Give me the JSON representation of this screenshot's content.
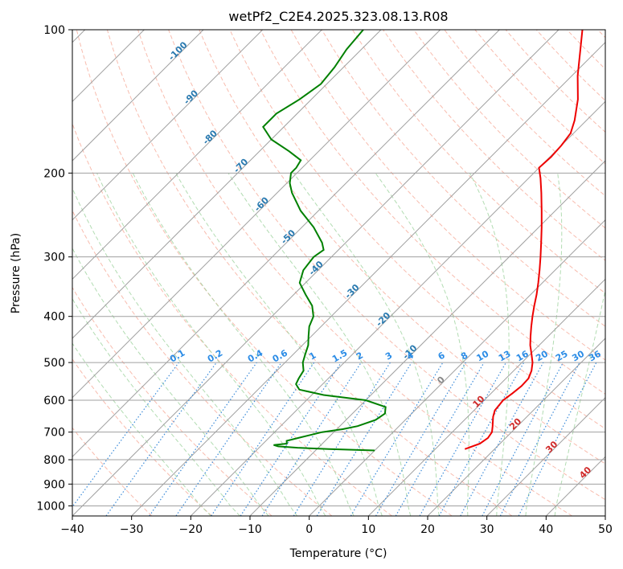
{
  "chart_data": {
    "type": "skew-t",
    "title": "wetPf2_C2E4.2025.323.08.13.R08",
    "xlabel": "Temperature (°C)",
    "ylabel": "Pressure (hPa)",
    "xlim": [
      -40,
      50
    ],
    "ylim_hpa": [
      1050,
      100
    ],
    "x_ticks": [
      -40,
      -30,
      -20,
      -10,
      0,
      10,
      20,
      30,
      40,
      50
    ],
    "x_tick_labels": [
      "−40",
      "−30",
      "−20",
      "−10",
      "0",
      "10",
      "20",
      "30",
      "40",
      "50"
    ],
    "p_ticks": [
      100,
      200,
      300,
      400,
      500,
      600,
      700,
      800,
      900,
      1000
    ],
    "p_tick_labels": [
      "100",
      "200",
      "300",
      "400",
      "500",
      "600",
      "700",
      "800",
      "900",
      "1000"
    ],
    "grid": true,
    "isotherm_labels": [
      {
        "text": "-100",
        "value": -100
      },
      {
        "text": "-90",
        "value": -90
      },
      {
        "text": "-80",
        "value": -80
      },
      {
        "text": "-70",
        "value": -70
      },
      {
        "text": "-60",
        "value": -60
      },
      {
        "text": "-50",
        "value": -50
      },
      {
        "text": "-40",
        "value": -40
      },
      {
        "text": "-30",
        "value": -30
      },
      {
        "text": "-20",
        "value": -20
      },
      {
        "text": "-10",
        "value": -10
      },
      {
        "text": "0",
        "value": 0
      },
      {
        "text": "10",
        "value": 10
      },
      {
        "text": "20",
        "value": 20
      },
      {
        "text": "30",
        "value": 30
      },
      {
        "text": "40",
        "value": 40
      }
    ],
    "mixing_ratio_labels": [
      "0.1",
      "0.2",
      "0.4",
      "0.6",
      "1",
      "1.5",
      "2",
      "3",
      "4",
      "6",
      "8",
      "10",
      "13",
      "16",
      "20",
      "25",
      "30",
      "36"
    ],
    "mixing_ratio_values": [
      0.1,
      0.2,
      0.4,
      0.6,
      1,
      1.5,
      2,
      3,
      4,
      6,
      8,
      10,
      13,
      16,
      20,
      25,
      30,
      36
    ],
    "series": [
      {
        "color": "#ee0000",
        "points": [
          [
            760,
            15.0
          ],
          [
            740,
            16.6
          ],
          [
            720,
            17.0
          ],
          [
            700,
            16.7
          ],
          [
            680,
            15.8
          ],
          [
            650,
            14.3
          ],
          [
            630,
            13.5
          ],
          [
            600,
            13.2
          ],
          [
            580,
            13.6
          ],
          [
            560,
            13.9
          ],
          [
            540,
            13.8
          ],
          [
            520,
            13.0
          ],
          [
            500,
            11.8
          ],
          [
            480,
            10.2
          ],
          [
            460,
            8.5
          ],
          [
            440,
            7.0
          ],
          [
            420,
            5.5
          ],
          [
            400,
            4.0
          ],
          [
            380,
            2.5
          ],
          [
            360,
            1.0
          ],
          [
            340,
            -0.7
          ],
          [
            320,
            -2.6
          ],
          [
            300,
            -4.7
          ],
          [
            280,
            -7.0
          ],
          [
            260,
            -9.5
          ],
          [
            240,
            -12.3
          ],
          [
            220,
            -15.4
          ],
          [
            205,
            -18.0
          ],
          [
            195,
            -20.0
          ],
          [
            185,
            -19.8
          ],
          [
            175,
            -20.0
          ],
          [
            165,
            -20.5
          ],
          [
            155,
            -22.0
          ],
          [
            140,
            -25.0
          ],
          [
            125,
            -29.0
          ],
          [
            110,
            -33.0
          ],
          [
            100,
            -36.0
          ]
        ]
      },
      {
        "color": "#008000",
        "points": [
          [
            765,
            0.0
          ],
          [
            760,
            -8.0
          ],
          [
            755,
            -13.5
          ],
          [
            750,
            -17.0
          ],
          [
            745,
            -18.0
          ],
          [
            740,
            -16.0
          ],
          [
            730,
            -16.5
          ],
          [
            720,
            -15.0
          ],
          [
            700,
            -12.0
          ],
          [
            690,
            -9.0
          ],
          [
            680,
            -7.0
          ],
          [
            660,
            -5.0
          ],
          [
            640,
            -4.5
          ],
          [
            620,
            -5.5
          ],
          [
            600,
            -10.0
          ],
          [
            585,
            -18.0
          ],
          [
            570,
            -23.0
          ],
          [
            555,
            -24.5
          ],
          [
            540,
            -25.0
          ],
          [
            520,
            -25.5
          ],
          [
            500,
            -27.0
          ],
          [
            480,
            -28.0
          ],
          [
            460,
            -29.0
          ],
          [
            440,
            -30.5
          ],
          [
            420,
            -32.0
          ],
          [
            400,
            -33.0
          ],
          [
            380,
            -35.0
          ],
          [
            360,
            -38.0
          ],
          [
            340,
            -41.0
          ],
          [
            320,
            -42.5
          ],
          [
            300,
            -43.0
          ],
          [
            290,
            -42.5
          ],
          [
            280,
            -44.0
          ],
          [
            260,
            -48.0
          ],
          [
            240,
            -53.0
          ],
          [
            220,
            -57.5
          ],
          [
            210,
            -59.5
          ],
          [
            200,
            -61.0
          ],
          [
            195,
            -61.0
          ],
          [
            188,
            -61.5
          ],
          [
            180,
            -65.0
          ],
          [
            170,
            -70.0
          ],
          [
            160,
            -73.5
          ],
          [
            150,
            -73.5
          ],
          [
            140,
            -72.0
          ],
          [
            130,
            -71.0
          ],
          [
            120,
            -71.5
          ],
          [
            110,
            -72.5
          ],
          [
            100,
            -73.0
          ]
        ]
      }
    ]
  }
}
